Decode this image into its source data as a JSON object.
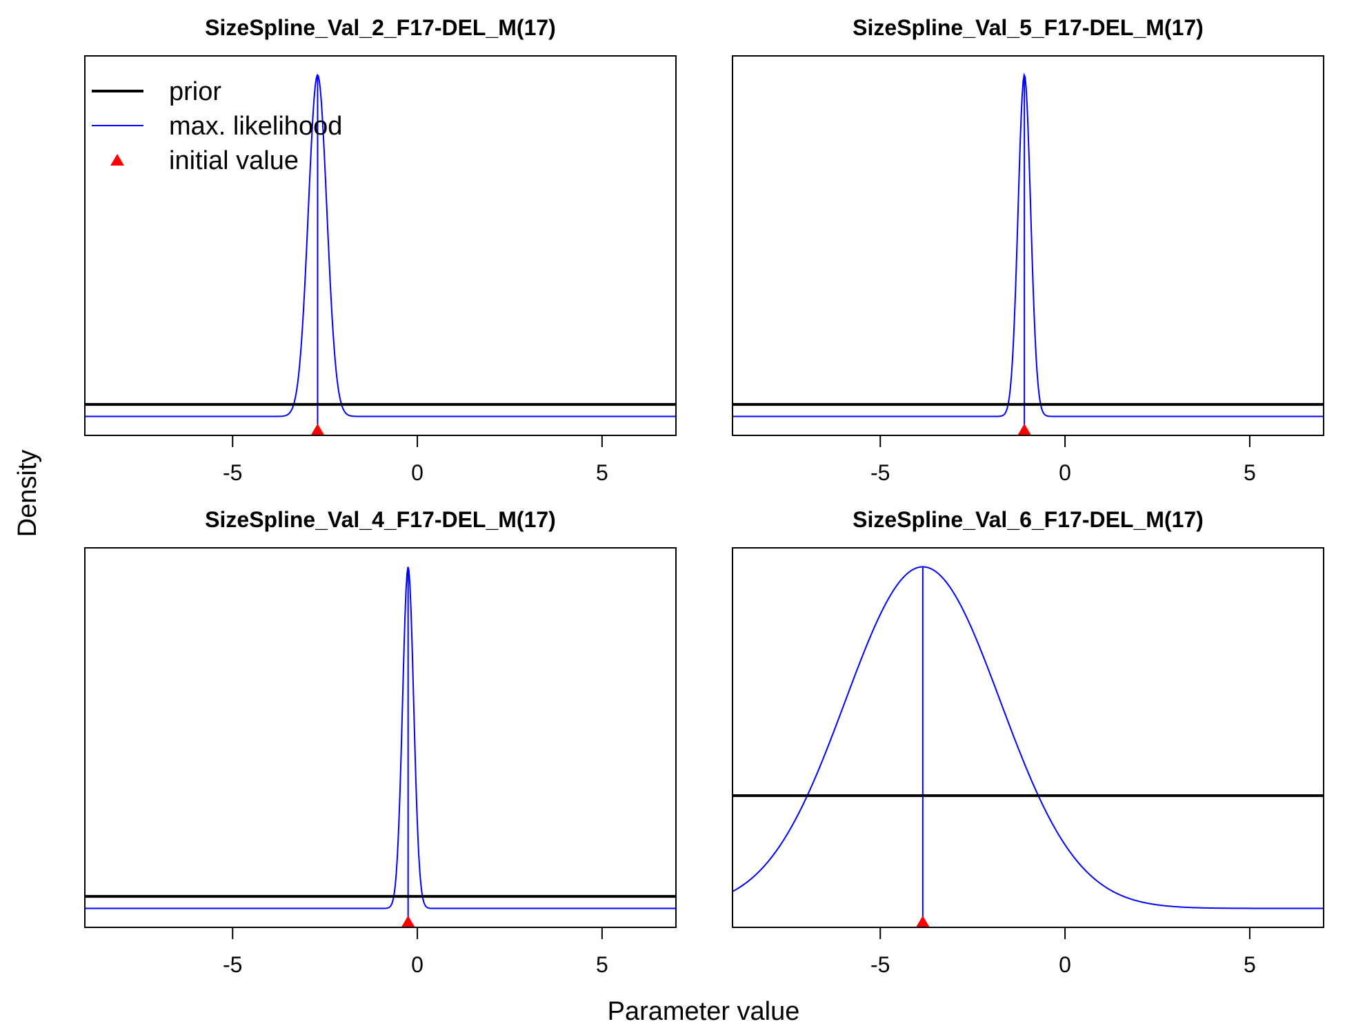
{
  "figure": {
    "xlabel": "Parameter value",
    "ylabel": "Density"
  },
  "legend": {
    "placement": "top-left of first panel",
    "items": [
      {
        "label": "prior",
        "kind": "line",
        "color": "#000000"
      },
      {
        "label": "max. likelihood",
        "kind": "line",
        "color": "#0000ff"
      },
      {
        "label": "initial value",
        "kind": "triangle",
        "color": "#ff0000"
      }
    ]
  },
  "colors": {
    "prior": "#000000",
    "max_likelihood": "#0000ff",
    "initial_value": "#ff0000"
  },
  "chart_data": [
    {
      "type": "line",
      "title": "SizeSpline_Val_2_F17-DEL_M(17)",
      "xlim": [
        -9,
        7
      ],
      "xticks": [
        -5,
        0,
        5
      ],
      "prior_level": 0.035,
      "ml": {
        "mean": -2.7,
        "sd": 0.25
      },
      "initial_value": -2.7
    },
    {
      "type": "line",
      "title": "SizeSpline_Val_5_F17-DEL_M(17)",
      "xlim": [
        -9,
        7
      ],
      "xticks": [
        -5,
        0,
        5
      ],
      "prior_level": 0.035,
      "ml": {
        "mean": -1.1,
        "sd": 0.17
      },
      "initial_value": -1.1
    },
    {
      "type": "line",
      "title": "SizeSpline_Val_4_F17-DEL_M(17)",
      "xlim": [
        -9,
        7
      ],
      "xticks": [
        -5,
        0,
        5
      ],
      "prior_level": 0.035,
      "ml": {
        "mean": -0.25,
        "sd": 0.15
      },
      "initial_value": -0.25
    },
    {
      "type": "line",
      "title": "SizeSpline_Val_6_F17-DEL_M(17)",
      "xlim": [
        -9,
        7
      ],
      "xticks": [
        -5,
        0,
        5
      ],
      "prior_level": 0.33,
      "ml": {
        "mean": -3.85,
        "sd": 2.1
      },
      "initial_value": -3.85
    }
  ]
}
